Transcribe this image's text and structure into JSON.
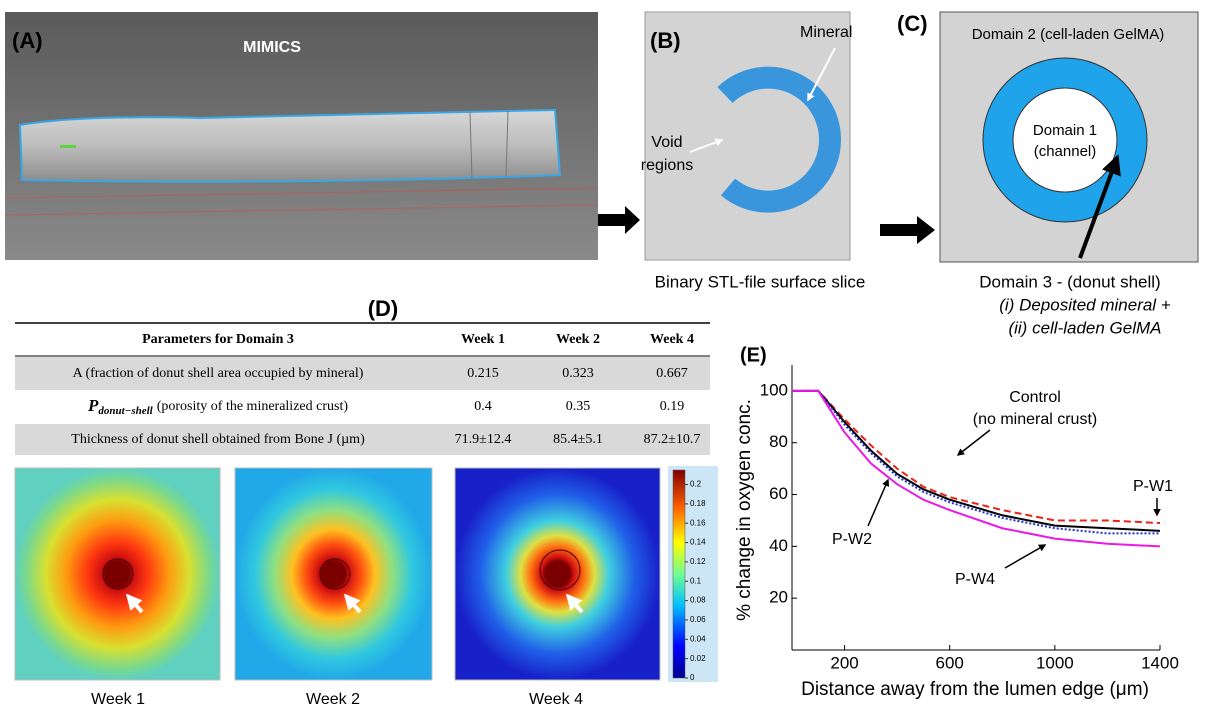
{
  "panel_a": {
    "label": "(A)",
    "title": "MIMICS"
  },
  "panel_b": {
    "label": "(B)",
    "mineral": "Mineral",
    "void_line1": "Void",
    "void_line2": "regions",
    "caption": "Binary STL-file surface slice"
  },
  "panel_c": {
    "label": "(C)",
    "domain2": "Domain 2 (cell-laden GelMA)",
    "domain1_line1": "Domain 1",
    "domain1_line2": "(channel)",
    "caption_line1": "Domain 3 - (donut shell)",
    "caption_line2": "(i) Deposited mineral +",
    "caption_line3": "(ii) cell-laden GelMA"
  },
  "panel_d": {
    "label": "(D)",
    "table": {
      "header": [
        "Parameters for Domain 3",
        "Week 1",
        "Week 2",
        "Week 4"
      ],
      "rows": [
        [
          "A (fraction of donut shell area occupied by mineral)",
          "0.215",
          "0.323",
          "0.667"
        ],
        [
          {
            "symbol": "P",
            "subscript": "donut−shell",
            "text": "(porosity of the mineralized crust)"
          },
          "0.4",
          "0.35",
          "0.19"
        ],
        [
          "Thickness of donut shell obtained from Bone J (µm)",
          "71.9±12.4",
          "85.4±5.1",
          "87.2±10.7"
        ]
      ]
    },
    "heatmaps": [
      "Week 1",
      "Week 2",
      "Week 4"
    ],
    "colorbar": {
      "lim": [
        0,
        0.215
      ],
      "ticks": [
        0,
        0.02,
        0.04,
        0.06,
        0.08,
        0.1,
        0.12,
        0.14,
        0.16,
        0.18,
        0.2
      ]
    }
  },
  "chart_data": {
    "type": "line",
    "label": "(E)",
    "x_label": "Distance away from the lumen edge (μm)",
    "y_label": "% change in oxygen conc.",
    "x": [
      0,
      100,
      200,
      300,
      400,
      500,
      600,
      800,
      1000,
      1200,
      1400
    ],
    "xlim": [
      0,
      1400
    ],
    "xticks": [
      200,
      600,
      1000,
      1400
    ],
    "ylim": [
      0,
      110
    ],
    "yticks": [
      20,
      40,
      60,
      80,
      100
    ],
    "series": [
      {
        "name": "Control",
        "color": "#e8231c",
        "dash": "7,4",
        "values": [
          100,
          100,
          89,
          79,
          70,
          63,
          59,
          54,
          50,
          50,
          49
        ]
      },
      {
        "name": "P-W1",
        "color": "#000000",
        "dash": "none",
        "values": [
          100,
          100,
          88,
          77,
          68,
          62,
          58,
          52,
          48,
          47,
          46
        ]
      },
      {
        "name": "P-W2",
        "color": "#1f2fd6",
        "dash": "2,2",
        "values": [
          100,
          100,
          87,
          76,
          67,
          61,
          57,
          51,
          47,
          45,
          45
        ]
      },
      {
        "name": "P-W4",
        "color": "#ea19e6",
        "dash": "none",
        "values": [
          100,
          100,
          84,
          72,
          64,
          58,
          54,
          47,
          43,
          41,
          40
        ]
      }
    ],
    "control_note": "(no mineral crust)"
  }
}
